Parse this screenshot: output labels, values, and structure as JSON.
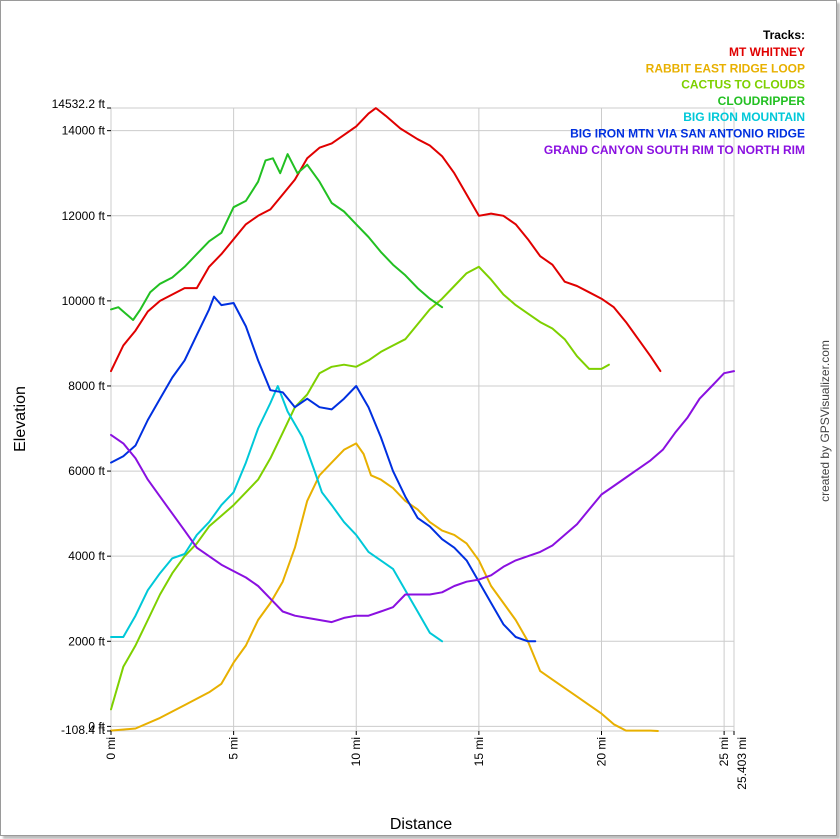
{
  "chart_data": {
    "type": "line",
    "title": "",
    "xlabel": "Distance",
    "ylabel": "Elevation",
    "xlim": [
      0,
      25.403
    ],
    "ylim": [
      -108.4,
      14532.2
    ],
    "x_ticks": [
      {
        "value": 0,
        "label": "0 mi"
      },
      {
        "value": 5,
        "label": "5 mi"
      },
      {
        "value": 10,
        "label": "10 mi"
      },
      {
        "value": 15,
        "label": "15 mi"
      },
      {
        "value": 20,
        "label": "20 mi"
      },
      {
        "value": 25,
        "label": "25 mi"
      },
      {
        "value": 25.403,
        "label": "25.403 mi"
      }
    ],
    "y_ticks": [
      {
        "value": 14532.2,
        "label": "14532.2 ft"
      },
      {
        "value": 14000,
        "label": "14000 ft"
      },
      {
        "value": 12000,
        "label": "12000 ft"
      },
      {
        "value": 10000,
        "label": "10000 ft"
      },
      {
        "value": 8000,
        "label": "8000 ft"
      },
      {
        "value": 6000,
        "label": "6000 ft"
      },
      {
        "value": 4000,
        "label": "4000 ft"
      },
      {
        "value": 2000,
        "label": "2000 ft"
      },
      {
        "value": 0,
        "label": "0 ft"
      },
      {
        "value": -108.4,
        "label": "-108.4 ft"
      }
    ],
    "grid": true,
    "legend_title": "Tracks:",
    "legend_position": "top-right",
    "credit": "created by GPSVisualizer.com",
    "series": [
      {
        "name": "MT WHITNEY",
        "color": "#e00000",
        "points": [
          [
            0,
            8350
          ],
          [
            0.5,
            8950
          ],
          [
            1,
            9300
          ],
          [
            1.5,
            9750
          ],
          [
            2,
            10000
          ],
          [
            2.5,
            10150
          ],
          [
            3,
            10300
          ],
          [
            3.5,
            10300
          ],
          [
            4,
            10800
          ],
          [
            4.5,
            11100
          ],
          [
            5,
            11450
          ],
          [
            5.5,
            11800
          ],
          [
            6,
            12000
          ],
          [
            6.5,
            12150
          ],
          [
            7,
            12500
          ],
          [
            7.5,
            12850
          ],
          [
            8,
            13350
          ],
          [
            8.5,
            13600
          ],
          [
            9,
            13700
          ],
          [
            9.5,
            13900
          ],
          [
            10,
            14100
          ],
          [
            10.5,
            14400
          ],
          [
            10.8,
            14530
          ],
          [
            11.2,
            14350
          ],
          [
            11.8,
            14050
          ],
          [
            12.5,
            13800
          ],
          [
            13,
            13650
          ],
          [
            13.5,
            13400
          ],
          [
            14,
            13000
          ],
          [
            14.5,
            12500
          ],
          [
            15,
            12000
          ],
          [
            15.5,
            12050
          ],
          [
            16,
            12000
          ],
          [
            16.5,
            11800
          ],
          [
            17,
            11450
          ],
          [
            17.5,
            11050
          ],
          [
            18,
            10850
          ],
          [
            18.5,
            10450
          ],
          [
            19,
            10350
          ],
          [
            19.5,
            10200
          ],
          [
            20,
            10050
          ],
          [
            20.5,
            9850
          ],
          [
            21,
            9500
          ],
          [
            21.5,
            9100
          ],
          [
            22,
            8700
          ],
          [
            22.4,
            8350
          ]
        ]
      },
      {
        "name": "RABBIT EAST RIDGE LOOP",
        "color": "#e8b000",
        "points": [
          [
            0,
            -100
          ],
          [
            1,
            -50
          ],
          [
            2,
            200
          ],
          [
            3,
            500
          ],
          [
            4,
            800
          ],
          [
            4.5,
            1000
          ],
          [
            5,
            1500
          ],
          [
            5.5,
            1900
          ],
          [
            6,
            2500
          ],
          [
            6.5,
            2900
          ],
          [
            7,
            3400
          ],
          [
            7.5,
            4200
          ],
          [
            8,
            5300
          ],
          [
            8.5,
            5900
          ],
          [
            9,
            6200
          ],
          [
            9.5,
            6500
          ],
          [
            10,
            6650
          ],
          [
            10.3,
            6400
          ],
          [
            10.6,
            5900
          ],
          [
            11,
            5800
          ],
          [
            11.5,
            5600
          ],
          [
            12,
            5300
          ],
          [
            12.5,
            5100
          ],
          [
            13,
            4800
          ],
          [
            13.5,
            4600
          ],
          [
            14,
            4500
          ],
          [
            14.5,
            4300
          ],
          [
            15,
            3900
          ],
          [
            15.5,
            3300
          ],
          [
            16,
            2900
          ],
          [
            16.5,
            2500
          ],
          [
            17,
            2000
          ],
          [
            17.5,
            1300
          ],
          [
            18,
            1100
          ],
          [
            18.5,
            900
          ],
          [
            19,
            700
          ],
          [
            19.5,
            500
          ],
          [
            20,
            300
          ],
          [
            20.5,
            50
          ],
          [
            21,
            -100
          ],
          [
            21.5,
            -100
          ],
          [
            22,
            -100
          ],
          [
            22.3,
            -108
          ]
        ]
      },
      {
        "name": "CACTUS TO CLOUDS",
        "color": "#7ed000",
        "points": [
          [
            0,
            400
          ],
          [
            0.5,
            1400
          ],
          [
            1,
            1900
          ],
          [
            1.5,
            2500
          ],
          [
            2,
            3100
          ],
          [
            2.5,
            3600
          ],
          [
            3,
            4000
          ],
          [
            3.5,
            4300
          ],
          [
            4,
            4700
          ],
          [
            4.5,
            4950
          ],
          [
            5,
            5200
          ],
          [
            5.5,
            5500
          ],
          [
            6,
            5800
          ],
          [
            6.5,
            6300
          ],
          [
            7,
            6900
          ],
          [
            7.5,
            7500
          ],
          [
            8,
            7800
          ],
          [
            8.5,
            8300
          ],
          [
            9,
            8450
          ],
          [
            9.5,
            8500
          ],
          [
            10,
            8450
          ],
          [
            10.5,
            8600
          ],
          [
            11,
            8800
          ],
          [
            11.5,
            8950
          ],
          [
            12,
            9100
          ],
          [
            12.5,
            9450
          ],
          [
            13,
            9800
          ],
          [
            13.5,
            10050
          ],
          [
            14,
            10350
          ],
          [
            14.5,
            10650
          ],
          [
            15,
            10800
          ],
          [
            15.5,
            10500
          ],
          [
            16,
            10150
          ],
          [
            16.5,
            9900
          ],
          [
            17,
            9700
          ],
          [
            17.5,
            9500
          ],
          [
            18,
            9350
          ],
          [
            18.5,
            9100
          ],
          [
            19,
            8700
          ],
          [
            19.5,
            8400
          ],
          [
            20,
            8400
          ],
          [
            20.3,
            8500
          ]
        ]
      },
      {
        "name": "CLOUDRIPPER",
        "color": "#22c022",
        "points": [
          [
            0,
            9800
          ],
          [
            0.3,
            9850
          ],
          [
            0.6,
            9700
          ],
          [
            0.9,
            9550
          ],
          [
            1.2,
            9800
          ],
          [
            1.6,
            10200
          ],
          [
            2,
            10400
          ],
          [
            2.5,
            10550
          ],
          [
            3,
            10800
          ],
          [
            3.5,
            11100
          ],
          [
            4,
            11400
          ],
          [
            4.5,
            11600
          ],
          [
            5,
            12200
          ],
          [
            5.5,
            12350
          ],
          [
            6,
            12800
          ],
          [
            6.3,
            13300
          ],
          [
            6.6,
            13350
          ],
          [
            6.9,
            13000
          ],
          [
            7.2,
            13450
          ],
          [
            7.6,
            13000
          ],
          [
            8,
            13200
          ],
          [
            8.5,
            12800
          ],
          [
            9,
            12300
          ],
          [
            9.5,
            12100
          ],
          [
            10,
            11800
          ],
          [
            10.5,
            11500
          ],
          [
            11,
            11150
          ],
          [
            11.5,
            10850
          ],
          [
            12,
            10600
          ],
          [
            12.5,
            10300
          ],
          [
            13,
            10050
          ],
          [
            13.5,
            9850
          ]
        ]
      },
      {
        "name": "BIG IRON MOUNTAIN",
        "color": "#00c8d8",
        "points": [
          [
            0,
            2100
          ],
          [
            0.5,
            2100
          ],
          [
            1,
            2600
          ],
          [
            1.5,
            3200
          ],
          [
            2,
            3600
          ],
          [
            2.5,
            3950
          ],
          [
            3,
            4050
          ],
          [
            3.5,
            4500
          ],
          [
            4,
            4800
          ],
          [
            4.5,
            5200
          ],
          [
            5,
            5500
          ],
          [
            5.5,
            6200
          ],
          [
            6,
            7000
          ],
          [
            6.5,
            7600
          ],
          [
            6.8,
            8000
          ],
          [
            7.2,
            7400
          ],
          [
            7.8,
            6800
          ],
          [
            8.3,
            6000
          ],
          [
            8.6,
            5500
          ],
          [
            9,
            5200
          ],
          [
            9.5,
            4800
          ],
          [
            10,
            4500
          ],
          [
            10.5,
            4100
          ],
          [
            11,
            3900
          ],
          [
            11.5,
            3700
          ],
          [
            12,
            3200
          ],
          [
            12.5,
            2700
          ],
          [
            13,
            2200
          ],
          [
            13.5,
            2000
          ]
        ]
      },
      {
        "name": "BIG IRON MTN VIA SAN ANTONIO RIDGE",
        "color": "#0030e0",
        "points": [
          [
            0,
            6200
          ],
          [
            0.5,
            6350
          ],
          [
            1,
            6600
          ],
          [
            1.5,
            7200
          ],
          [
            2,
            7700
          ],
          [
            2.5,
            8200
          ],
          [
            3,
            8600
          ],
          [
            3.5,
            9200
          ],
          [
            4,
            9800
          ],
          [
            4.2,
            10100
          ],
          [
            4.5,
            9900
          ],
          [
            5,
            9950
          ],
          [
            5.5,
            9400
          ],
          [
            6,
            8600
          ],
          [
            6.5,
            7900
          ],
          [
            7,
            7850
          ],
          [
            7.5,
            7500
          ],
          [
            8,
            7700
          ],
          [
            8.5,
            7500
          ],
          [
            9,
            7450
          ],
          [
            9.5,
            7700
          ],
          [
            10,
            8000
          ],
          [
            10.5,
            7500
          ],
          [
            11,
            6800
          ],
          [
            11.5,
            6000
          ],
          [
            12,
            5400
          ],
          [
            12.5,
            4900
          ],
          [
            13,
            4700
          ],
          [
            13.5,
            4400
          ],
          [
            14,
            4200
          ],
          [
            14.5,
            3900
          ],
          [
            15,
            3400
          ],
          [
            15.5,
            2900
          ],
          [
            16,
            2400
          ],
          [
            16.5,
            2100
          ],
          [
            17,
            2000
          ],
          [
            17.3,
            2000
          ]
        ]
      },
      {
        "name": "GRAND CANYON SOUTH RIM TO NORTH RIM",
        "color": "#8a10e0",
        "points": [
          [
            0,
            6850
          ],
          [
            0.5,
            6650
          ],
          [
            1,
            6300
          ],
          [
            1.5,
            5800
          ],
          [
            2,
            5400
          ],
          [
            2.5,
            5000
          ],
          [
            3,
            4600
          ],
          [
            3.5,
            4200
          ],
          [
            4,
            4000
          ],
          [
            4.5,
            3800
          ],
          [
            5,
            3650
          ],
          [
            5.5,
            3500
          ],
          [
            6,
            3300
          ],
          [
            6.5,
            3000
          ],
          [
            7,
            2700
          ],
          [
            7.5,
            2600
          ],
          [
            8,
            2550
          ],
          [
            8.5,
            2500
          ],
          [
            9,
            2450
          ],
          [
            9.5,
            2550
          ],
          [
            10,
            2600
          ],
          [
            10.5,
            2600
          ],
          [
            11,
            2700
          ],
          [
            11.5,
            2800
          ],
          [
            12,
            3100
          ],
          [
            12.5,
            3100
          ],
          [
            13,
            3100
          ],
          [
            13.5,
            3150
          ],
          [
            14,
            3300
          ],
          [
            14.5,
            3400
          ],
          [
            15,
            3450
          ],
          [
            15.5,
            3550
          ],
          [
            16,
            3750
          ],
          [
            16.5,
            3900
          ],
          [
            17,
            4000
          ],
          [
            17.5,
            4100
          ],
          [
            18,
            4250
          ],
          [
            18.5,
            4500
          ],
          [
            19,
            4750
          ],
          [
            19.5,
            5100
          ],
          [
            20,
            5450
          ],
          [
            20.5,
            5650
          ],
          [
            21,
            5850
          ],
          [
            21.5,
            6050
          ],
          [
            22,
            6250
          ],
          [
            22.5,
            6500
          ],
          [
            23,
            6900
          ],
          [
            23.5,
            7250
          ],
          [
            24,
            7700
          ],
          [
            24.5,
            8000
          ],
          [
            25,
            8300
          ],
          [
            25.403,
            8350
          ]
        ]
      }
    ]
  }
}
